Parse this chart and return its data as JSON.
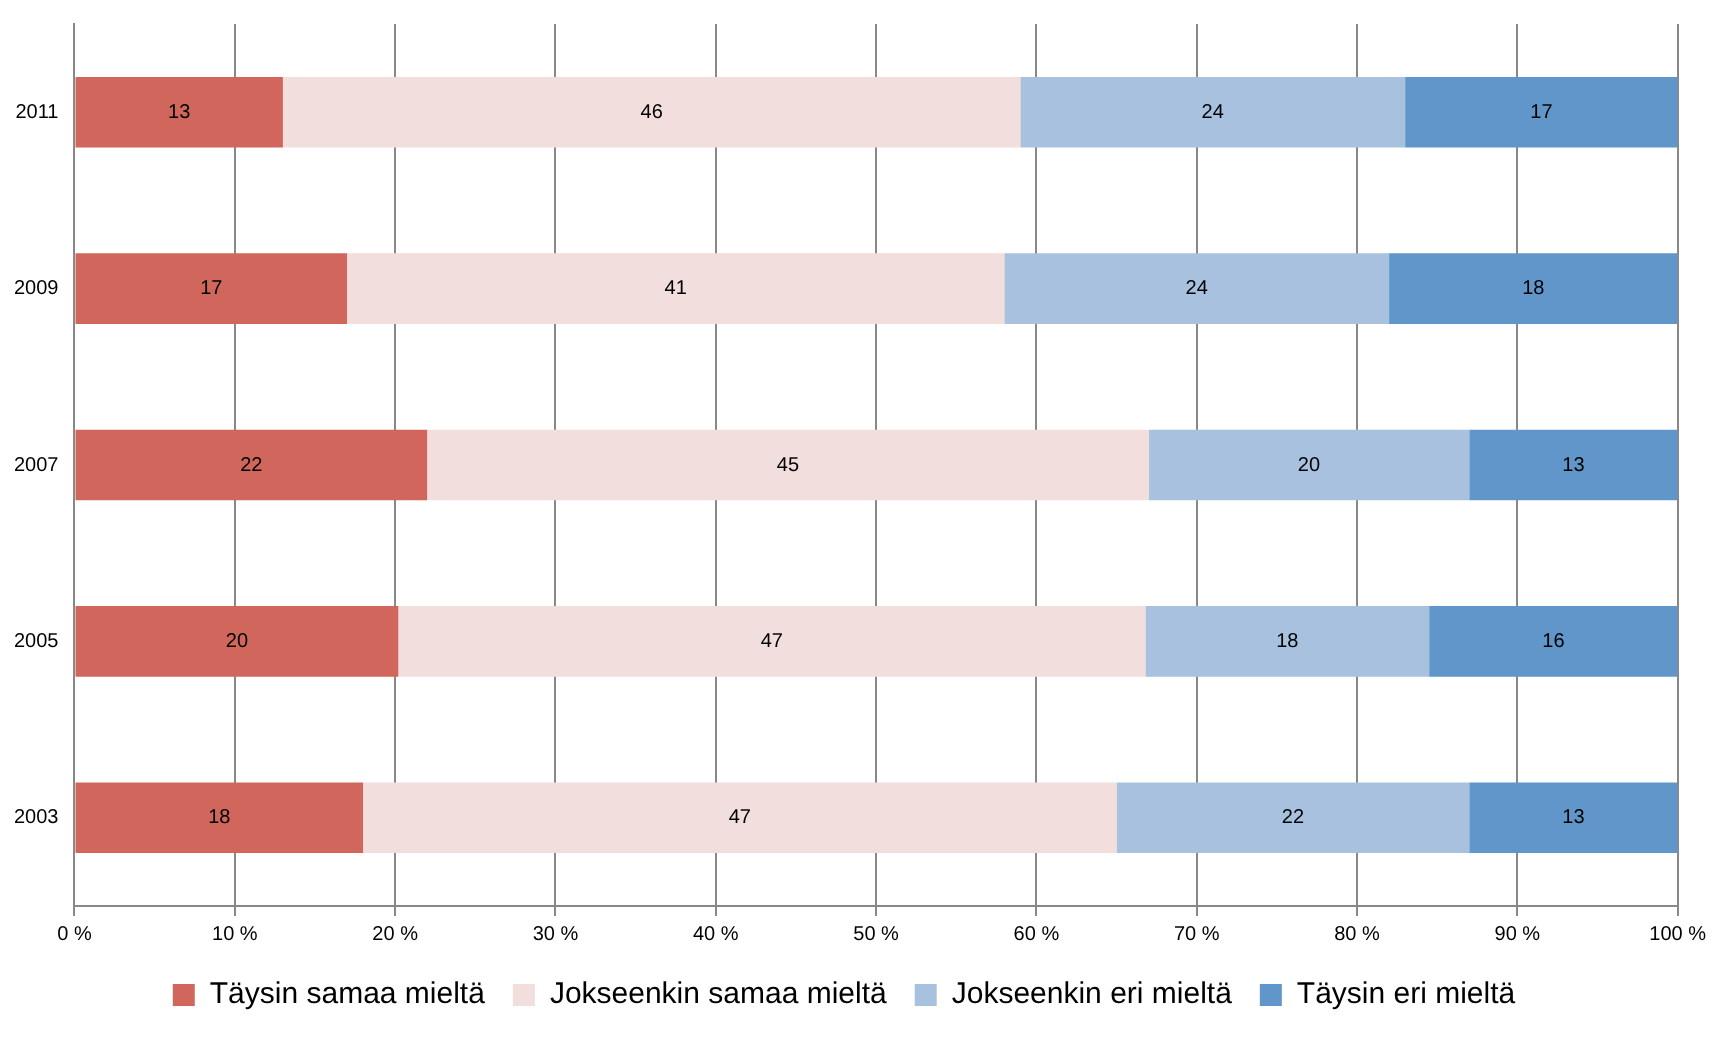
{
  "chart_data": {
    "type": "bar",
    "orientation": "horizontal",
    "stacked": true,
    "categories": [
      "2011",
      "2009",
      "2007",
      "2005",
      "2003"
    ],
    "series": [
      {
        "name": "Täysin samaa mieltä",
        "color": "#d0665c",
        "values": [
          13,
          17,
          22,
          20.2,
          18
        ],
        "value_labels": [
          "13",
          "17",
          "22",
          "20",
          "18"
        ]
      },
      {
        "name": "Jokseenkin samaa mieltä",
        "color": "#f2dedd",
        "values": [
          46,
          41,
          45,
          46.6,
          47
        ],
        "value_labels": [
          "46",
          "41",
          "45",
          "47",
          "47"
        ]
      },
      {
        "name": "Jokseenkin eri mieltä",
        "color": "#a8c1df",
        "values": [
          24,
          24,
          20,
          17.7,
          22
        ],
        "value_labels": [
          "24",
          "24",
          "20",
          "18",
          "22"
        ]
      },
      {
        "name": "Täysin eri mieltä",
        "color": "#6196ca",
        "values": [
          17,
          18,
          13,
          15.5,
          13
        ],
        "value_labels": [
          "17",
          "18",
          "13",
          "16",
          "13"
        ]
      }
    ],
    "xlim": [
      0,
      100
    ],
    "xticks": [
      {
        "value": 0,
        "label": "0 %"
      },
      {
        "value": 10,
        "label": "10 %"
      },
      {
        "value": 20,
        "label": "20 %"
      },
      {
        "value": 30,
        "label": "30 %"
      },
      {
        "value": 40,
        "label": "40 %"
      },
      {
        "value": 50,
        "label": "50 %"
      },
      {
        "value": 60,
        "label": "60 %"
      },
      {
        "value": 70,
        "label": "70 %"
      },
      {
        "value": 80,
        "label": "80 %"
      },
      {
        "value": 90,
        "label": "90 %"
      },
      {
        "value": 100,
        "label": "100 %"
      }
    ],
    "grid": "x",
    "legend": "bottom"
  }
}
